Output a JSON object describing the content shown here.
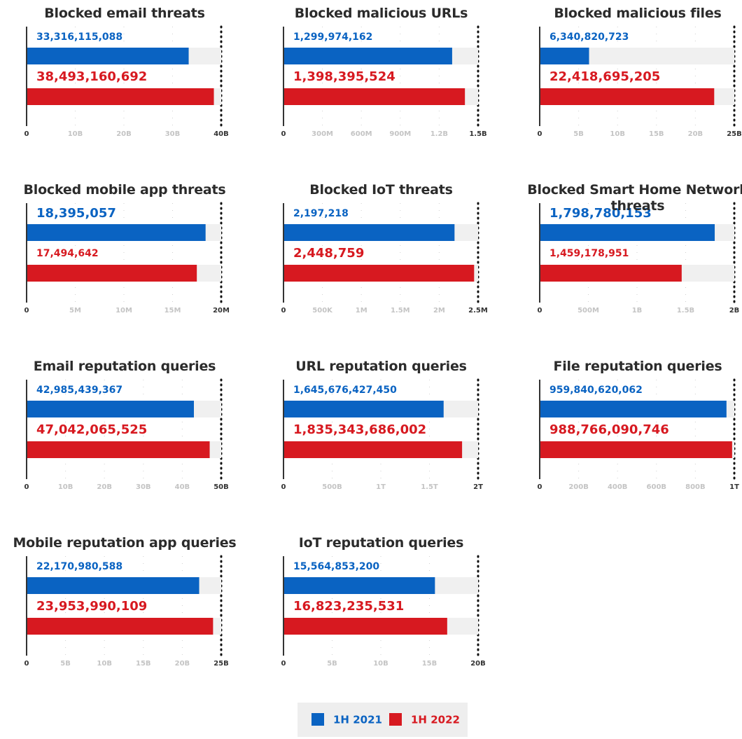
{
  "legend": [
    {
      "name": "1H 2021",
      "color": "#0a63c2"
    },
    {
      "name": "1H 2022",
      "color": "#d71920"
    }
  ],
  "chart_data": [
    {
      "type": "bar",
      "title": "Blocked email threats",
      "values": [
        33316115088,
        38493160692
      ],
      "value_labels": [
        "33,316,115,088",
        "38,493,160,692"
      ],
      "xlim": [
        0,
        40000000000
      ],
      "xticks": [
        0,
        {
          "value": 10000000000,
          "label": "10B"
        },
        {
          "value": 20000000000,
          "label": "20B"
        },
        {
          "value": 30000000000,
          "label": "30B"
        },
        {
          "value": 40000000000,
          "label": "40B"
        }
      ]
    },
    {
      "type": "bar",
      "title": "Blocked malicious URLs",
      "values": [
        1299974162,
        1398395524
      ],
      "value_labels": [
        "1,299,974,162",
        "1,398,395,524"
      ],
      "xlim": [
        0,
        1500000000
      ],
      "xticks": [
        0,
        {
          "value": 300000000,
          "label": "300M"
        },
        {
          "value": 600000000,
          "label": "600M"
        },
        {
          "value": 900000000,
          "label": "900M"
        },
        {
          "value": 1200000000,
          "label": "1.2B"
        },
        {
          "value": 1500000000,
          "label": "1.5B"
        }
      ]
    },
    {
      "type": "bar",
      "title": "Blocked malicious files",
      "values": [
        6340820723,
        22418695205
      ],
      "value_labels": [
        "6,340,820,723",
        "22,418,695,205"
      ],
      "xlim": [
        0,
        25000000000
      ],
      "xticks": [
        0,
        {
          "value": 5000000000,
          "label": "5B"
        },
        {
          "value": 10000000000,
          "label": "10B"
        },
        {
          "value": 15000000000,
          "label": "15B"
        },
        {
          "value": 20000000000,
          "label": "20B"
        },
        {
          "value": 25000000000,
          "label": "25B"
        }
      ]
    },
    {
      "type": "bar",
      "title": "Blocked mobile app threats",
      "values": [
        18395057,
        17494642
      ],
      "value_labels": [
        "18,395,057",
        "17,494,642"
      ],
      "xlim": [
        0,
        20000000
      ],
      "xticks": [
        0,
        {
          "value": 5000000,
          "label": "5M"
        },
        {
          "value": 10000000,
          "label": "10M"
        },
        {
          "value": 15000000,
          "label": "15M"
        },
        {
          "value": 20000000,
          "label": "20M"
        }
      ]
    },
    {
      "type": "bar",
      "title": "Blocked IoT threats",
      "values": [
        2197218,
        2448759
      ],
      "value_labels": [
        "2,197,218",
        "2,448,759"
      ],
      "xlim": [
        0,
        2500000
      ],
      "xticks": [
        0,
        {
          "value": 500000,
          "label": "500K"
        },
        {
          "value": 1000000,
          "label": "1M"
        },
        {
          "value": 1500000,
          "label": "1.5M"
        },
        {
          "value": 2000000,
          "label": "2M"
        },
        {
          "value": 2500000,
          "label": "2.5M"
        }
      ]
    },
    {
      "type": "bar",
      "title": "Blocked Smart Home Network threats",
      "values": [
        1798780153,
        1459178951
      ],
      "value_labels": [
        "1,798,780,153",
        "1,459,178,951"
      ],
      "xlim": [
        0,
        2000000000
      ],
      "xticks": [
        0,
        {
          "value": 500000000,
          "label": "500M"
        },
        {
          "value": 1000000000,
          "label": "1B"
        },
        {
          "value": 1500000000,
          "label": "1.5B"
        },
        {
          "value": 2000000000,
          "label": "2B"
        }
      ]
    },
    {
      "type": "bar",
      "title": "Email reputation queries",
      "values": [
        42985439367,
        47042065525
      ],
      "value_labels": [
        "42,985,439,367",
        "47,042,065,525"
      ],
      "xlim": [
        0,
        50000000000
      ],
      "xticks": [
        0,
        {
          "value": 10000000000,
          "label": "10B"
        },
        {
          "value": 20000000000,
          "label": "20B"
        },
        {
          "value": 30000000000,
          "label": "30B"
        },
        {
          "value": 40000000000,
          "label": "40B"
        },
        {
          "value": 50000000000,
          "label": "50B"
        }
      ]
    },
    {
      "type": "bar",
      "title": "URL reputation queries",
      "values": [
        1645676427450,
        1835343686002
      ],
      "value_labels": [
        "1,645,676,427,450",
        "1,835,343,686,002"
      ],
      "xlim": [
        0,
        2000000000000
      ],
      "xticks": [
        0,
        {
          "value": 500000000000,
          "label": "500B"
        },
        {
          "value": 1000000000000,
          "label": "1T"
        },
        {
          "value": 1500000000000,
          "label": "1.5T"
        },
        {
          "value": 2000000000000,
          "label": "2T"
        }
      ]
    },
    {
      "type": "bar",
      "title": "File reputation queries",
      "values": [
        959840620062,
        988766090746
      ],
      "value_labels": [
        "959,840,620,062",
        "988,766,090,746"
      ],
      "xlim": [
        0,
        1000000000000
      ],
      "xticks": [
        0,
        {
          "value": 200000000000,
          "label": "200B"
        },
        {
          "value": 400000000000,
          "label": "400B"
        },
        {
          "value": 600000000000,
          "label": "600B"
        },
        {
          "value": 800000000000,
          "label": "800B"
        },
        {
          "value": 1000000000000,
          "label": "1T"
        }
      ]
    },
    {
      "type": "bar",
      "title": "Mobile reputation app queries",
      "values": [
        22170980588,
        23953990109
      ],
      "value_labels": [
        "22,170,980,588",
        "23,953,990,109"
      ],
      "xlim": [
        0,
        25000000000
      ],
      "xticks": [
        0,
        {
          "value": 5000000000,
          "label": "5B"
        },
        {
          "value": 10000000000,
          "label": "10B"
        },
        {
          "value": 15000000000,
          "label": "15B"
        },
        {
          "value": 20000000000,
          "label": "20B"
        },
        {
          "value": 25000000000,
          "label": "25B"
        }
      ]
    },
    {
      "type": "bar",
      "title": "IoT reputation queries",
      "values": [
        15564853200,
        16823235531
      ],
      "value_labels": [
        "15,564,853,200",
        "16,823,235,531"
      ],
      "xlim": [
        0,
        20000000000
      ],
      "xticks": [
        0,
        {
          "value": 5000000000,
          "label": "5B"
        },
        {
          "value": 10000000000,
          "label": "10B"
        },
        {
          "value": 15000000000,
          "label": "15B"
        },
        {
          "value": 20000000000,
          "label": "20B"
        }
      ]
    }
  ]
}
